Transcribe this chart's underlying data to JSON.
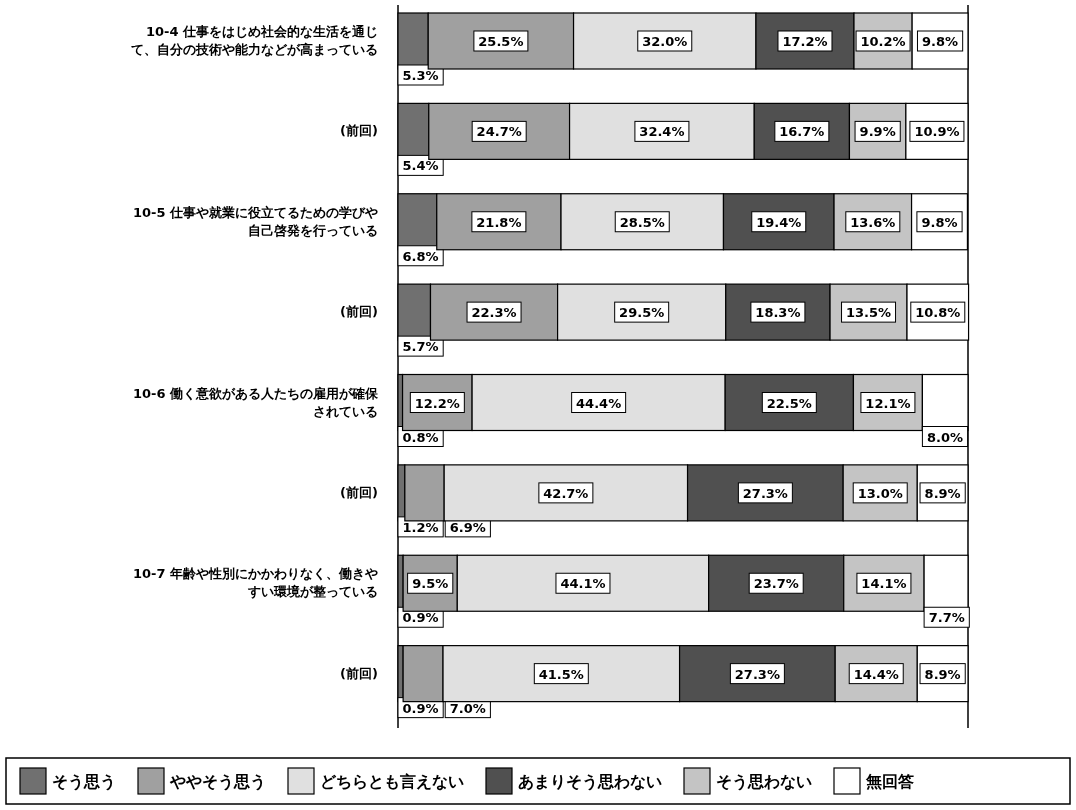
{
  "chart_data": {
    "type": "bar",
    "orientation": "horizontal",
    "stacked": true,
    "legend": "bottom",
    "xlim": [
      0,
      100
    ],
    "categories": [
      "10-4 仕事をはじめ社会的な生活を通じて、自分の技術や能力などが高まっている",
      "(前回)",
      "10-5 仕事や就業に役立てるための学びや自己啓発を行っている",
      "(前回)",
      "10-6 働く意欲がある人たちの雇用が確保されている",
      "(前回)",
      "10-7 年齢や性別にかかわりなく、働きやすい環境が整っている",
      "(前回)"
    ],
    "series": [
      {
        "name": "そう思う",
        "color": "#707070",
        "values": [
          5.3,
          5.4,
          6.8,
          5.7,
          0.8,
          1.2,
          0.9,
          0.9
        ],
        "value_labels": [
          "5.3%",
          "5.4%",
          "6.8%",
          "5.7%",
          "0.8%",
          "1.2%",
          "0.9%",
          "0.9%"
        ]
      },
      {
        "name": "ややそう思う",
        "color": "#a0a0a0",
        "values": [
          25.5,
          24.7,
          21.8,
          22.3,
          12.2,
          6.9,
          9.5,
          7.0
        ],
        "value_labels": [
          "25.5%",
          "24.7%",
          "21.8%",
          "22.3%",
          "12.2%",
          "6.9%",
          "9.5%",
          "7.0%"
        ]
      },
      {
        "name": "どちらとも言えない",
        "color": "#e0e0e0",
        "values": [
          32.0,
          32.4,
          28.5,
          29.5,
          44.4,
          42.7,
          44.1,
          41.5
        ],
        "value_labels": [
          "32.0%",
          "32.4%",
          "28.5%",
          "29.5%",
          "44.4%",
          "42.7%",
          "44.1%",
          "41.5%"
        ]
      },
      {
        "name": "あまりそう思わない",
        "color": "#505050",
        "values": [
          17.2,
          16.7,
          19.4,
          18.3,
          22.5,
          27.3,
          23.7,
          27.3
        ],
        "value_labels": [
          "17.2%",
          "16.7%",
          "19.4%",
          "18.3%",
          "22.5%",
          "27.3%",
          "23.7%",
          "27.3%"
        ]
      },
      {
        "name": "そう思わない",
        "color": "#c4c4c4",
        "values": [
          10.2,
          9.9,
          13.6,
          13.5,
          12.1,
          13.0,
          14.1,
          14.4
        ],
        "value_labels": [
          "10.2%",
          "9.9%",
          "13.6%",
          "13.5%",
          "12.1%",
          "13.0%",
          "14.1%",
          "14.4%"
        ]
      },
      {
        "name": "無回答",
        "color": "#ffffff",
        "values": [
          9.8,
          10.9,
          9.8,
          10.8,
          8.0,
          8.9,
          7.7,
          8.9
        ],
        "value_labels": [
          "9.8%",
          "10.9%",
          "9.8%",
          "10.8%",
          "8.0%",
          "8.9%",
          "7.7%",
          "8.9%"
        ]
      }
    ]
  }
}
